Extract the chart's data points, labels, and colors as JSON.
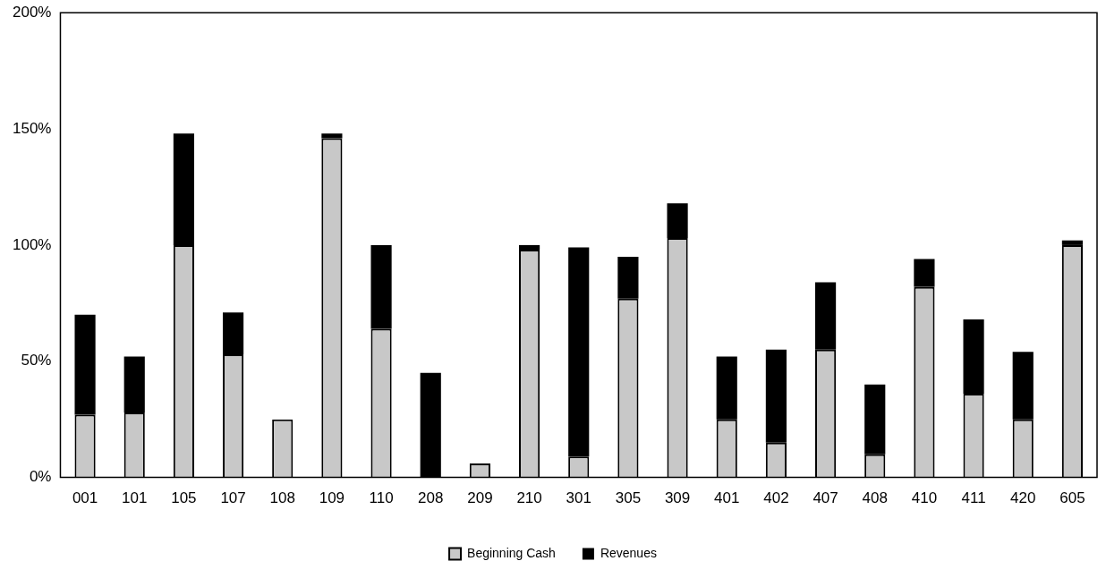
{
  "chart_data": {
    "type": "bar",
    "stacked": true,
    "categories": [
      "001",
      "101",
      "105",
      "107",
      "108",
      "109",
      "110",
      "208",
      "209",
      "210",
      "301",
      "305",
      "309",
      "401",
      "402",
      "407",
      "408",
      "410",
      "411",
      "420",
      "605"
    ],
    "series": [
      {
        "name": "Beginning Cash",
        "color": "#c8c8c8",
        "values": [
          27,
          28,
          100,
          53,
          25,
          146,
          64,
          0,
          6,
          98,
          9,
          77,
          103,
          25,
          15,
          55,
          10,
          82,
          36,
          25,
          100
        ]
      },
      {
        "name": "Revenues",
        "color": "#000000",
        "values": [
          43,
          24,
          48,
          18,
          0,
          2,
          36,
          45,
          0,
          2,
          90,
          18,
          15,
          27,
          40,
          29,
          30,
          12,
          32,
          29,
          2
        ]
      }
    ],
    "ylim": [
      0,
      200
    ],
    "yticks": [
      {
        "value": 0,
        "label": "0%"
      },
      {
        "value": 50,
        "label": "50%"
      },
      {
        "value": 100,
        "label": "100%"
      },
      {
        "value": 150,
        "label": "150%"
      },
      {
        "value": 200,
        "label": "200%"
      }
    ],
    "grid": false,
    "legend": "bottom"
  }
}
